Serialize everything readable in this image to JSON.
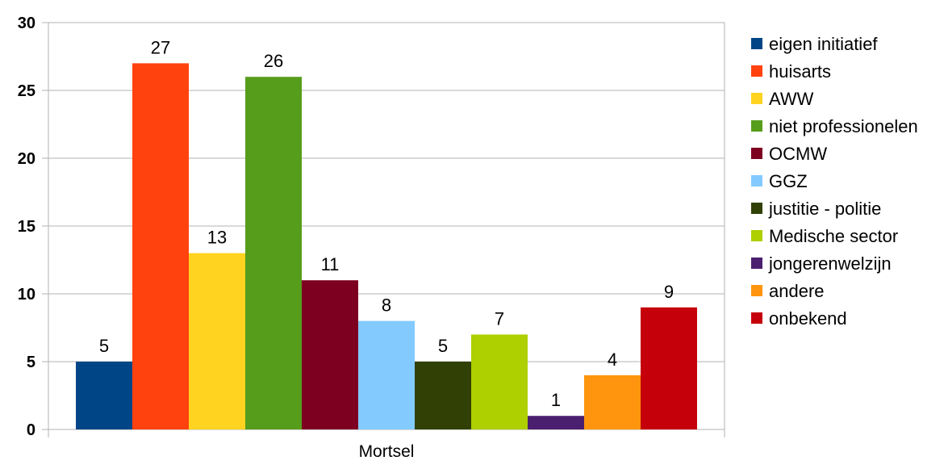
{
  "chart_data": {
    "type": "bar",
    "title": "",
    "xlabel": "",
    "ylabel": "",
    "categories": [
      "Mortsel"
    ],
    "ylim": [
      0,
      30
    ],
    "yticks": [
      0,
      5,
      10,
      15,
      20,
      25,
      30
    ],
    "grid": true,
    "legend_position": "right",
    "series": [
      {
        "name": "eigen initiatief",
        "values": [
          5
        ],
        "color": "#004586"
      },
      {
        "name": "huisarts",
        "values": [
          27
        ],
        "color": "#ff420e"
      },
      {
        "name": "AWW",
        "values": [
          13
        ],
        "color": "#ffd320"
      },
      {
        "name": "niet professionelen",
        "values": [
          26
        ],
        "color": "#579d1c"
      },
      {
        "name": "OCMW",
        "values": [
          11
        ],
        "color": "#7e0021"
      },
      {
        "name": "GGZ",
        "values": [
          8
        ],
        "color": "#83caff"
      },
      {
        "name": "justitie - politie",
        "values": [
          5
        ],
        "color": "#314004"
      },
      {
        "name": "Medische sector",
        "values": [
          7
        ],
        "color": "#aecf00"
      },
      {
        "name": "jongerenwelzijn",
        "values": [
          1
        ],
        "color": "#4b1f6f"
      },
      {
        "name": "andere",
        "values": [
          4
        ],
        "color": "#ff950e"
      },
      {
        "name": "onbekend",
        "values": [
          9
        ],
        "color": "#c5000b"
      }
    ]
  }
}
